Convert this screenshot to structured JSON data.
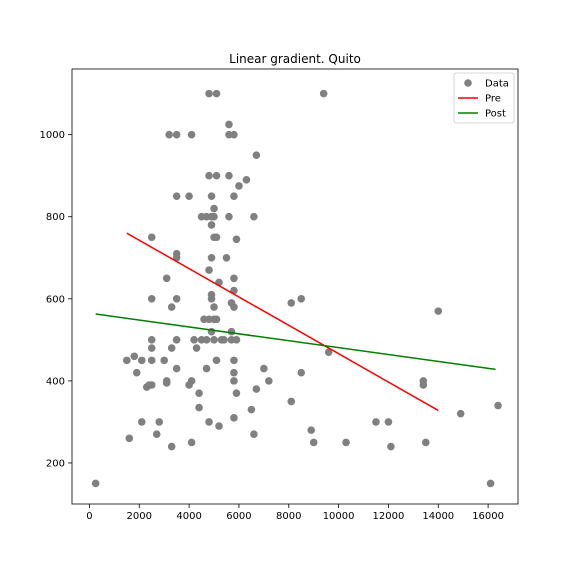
{
  "chart_data": {
    "type": "scatter",
    "title": "Linear gradient. Quito",
    "xlabel": "",
    "ylabel": "",
    "xlim": [
      -700,
      17200
    ],
    "ylim": [
      100,
      1160
    ],
    "x_ticks": [
      0,
      2000,
      4000,
      6000,
      8000,
      10000,
      12000,
      14000,
      16000
    ],
    "y_ticks": [
      200,
      400,
      600,
      800,
      1000
    ],
    "grid": false,
    "legend_position": "top-right",
    "colors": {
      "data": "#808080",
      "pre": "#ff0000",
      "post": "#008000"
    },
    "series": [
      {
        "name": "Data",
        "kind": "scatter",
        "points": [
          [
            250,
            150
          ],
          [
            1500,
            450
          ],
          [
            1600,
            260
          ],
          [
            1800,
            460
          ],
          [
            1900,
            420
          ],
          [
            2100,
            300
          ],
          [
            2100,
            450
          ],
          [
            2300,
            385
          ],
          [
            2400,
            390
          ],
          [
            2500,
            390
          ],
          [
            2500,
            450
          ],
          [
            2500,
            480
          ],
          [
            2500,
            500
          ],
          [
            2500,
            600
          ],
          [
            2500,
            750
          ],
          [
            2700,
            270
          ],
          [
            2800,
            300
          ],
          [
            3000,
            450
          ],
          [
            3100,
            400
          ],
          [
            3100,
            395
          ],
          [
            3100,
            650
          ],
          [
            3200,
            1000
          ],
          [
            3300,
            240
          ],
          [
            3300,
            480
          ],
          [
            3300,
            580
          ],
          [
            3500,
            500
          ],
          [
            3500,
            430
          ],
          [
            3500,
            600
          ],
          [
            3500,
            700
          ],
          [
            3500,
            710
          ],
          [
            3500,
            850
          ],
          [
            3500,
            1000
          ],
          [
            4000,
            390
          ],
          [
            4000,
            850
          ],
          [
            4100,
            400
          ],
          [
            4100,
            250
          ],
          [
            4100,
            1000
          ],
          [
            4200,
            500
          ],
          [
            4300,
            480
          ],
          [
            4400,
            335
          ],
          [
            4400,
            370
          ],
          [
            4500,
            500
          ],
          [
            4500,
            800
          ],
          [
            4600,
            550
          ],
          [
            4700,
            800
          ],
          [
            4700,
            500
          ],
          [
            4700,
            430
          ],
          [
            4800,
            300
          ],
          [
            4800,
            550
          ],
          [
            4800,
            670
          ],
          [
            4800,
            900
          ],
          [
            4800,
            1100
          ],
          [
            4900,
            850
          ],
          [
            4900,
            800
          ],
          [
            4900,
            780
          ],
          [
            4900,
            700
          ],
          [
            4900,
            600
          ],
          [
            4900,
            610
          ],
          [
            4900,
            520
          ],
          [
            5000,
            800
          ],
          [
            5000,
            820
          ],
          [
            5000,
            750
          ],
          [
            5000,
            580
          ],
          [
            5000,
            550
          ],
          [
            5000,
            500
          ],
          [
            5100,
            750
          ],
          [
            5100,
            550
          ],
          [
            5100,
            450
          ],
          [
            5100,
            900
          ],
          [
            5100,
            1100
          ],
          [
            5200,
            640
          ],
          [
            5200,
            290
          ],
          [
            5300,
            500
          ],
          [
            5400,
            500
          ],
          [
            5500,
            700
          ],
          [
            5600,
            1025
          ],
          [
            5600,
            1000
          ],
          [
            5600,
            900
          ],
          [
            5600,
            800
          ],
          [
            5700,
            590
          ],
          [
            5700,
            520
          ],
          [
            5700,
            500
          ],
          [
            5800,
            450
          ],
          [
            5800,
            310
          ],
          [
            5800,
            400
          ],
          [
            5800,
            420
          ],
          [
            5800,
            580
          ],
          [
            5800,
            620
          ],
          [
            5800,
            650
          ],
          [
            5800,
            850
          ],
          [
            5800,
            1000
          ],
          [
            5900,
            500
          ],
          [
            5900,
            370
          ],
          [
            5900,
            745
          ],
          [
            6000,
            875
          ],
          [
            6300,
            890
          ],
          [
            6500,
            330
          ],
          [
            6600,
            800
          ],
          [
            6600,
            270
          ],
          [
            6700,
            950
          ],
          [
            6700,
            380
          ],
          [
            7000,
            430
          ],
          [
            7200,
            400
          ],
          [
            8100,
            590
          ],
          [
            8100,
            350
          ],
          [
            8500,
            600
          ],
          [
            8500,
            420
          ],
          [
            8900,
            280
          ],
          [
            9000,
            250
          ],
          [
            9400,
            1100
          ],
          [
            9600,
            470
          ],
          [
            10300,
            250
          ],
          [
            11500,
            300
          ],
          [
            12000,
            300
          ],
          [
            12100,
            240
          ],
          [
            13400,
            390
          ],
          [
            13400,
            400
          ],
          [
            13500,
            250
          ],
          [
            14000,
            570
          ],
          [
            14900,
            320
          ],
          [
            16100,
            150
          ],
          [
            16400,
            340
          ]
        ]
      },
      {
        "name": "Pre",
        "kind": "line",
        "points": [
          [
            1500,
            760
          ],
          [
            14000,
            328
          ]
        ]
      },
      {
        "name": "Post",
        "kind": "line",
        "points": [
          [
            250,
            563
          ],
          [
            16300,
            428
          ]
        ]
      }
    ]
  }
}
